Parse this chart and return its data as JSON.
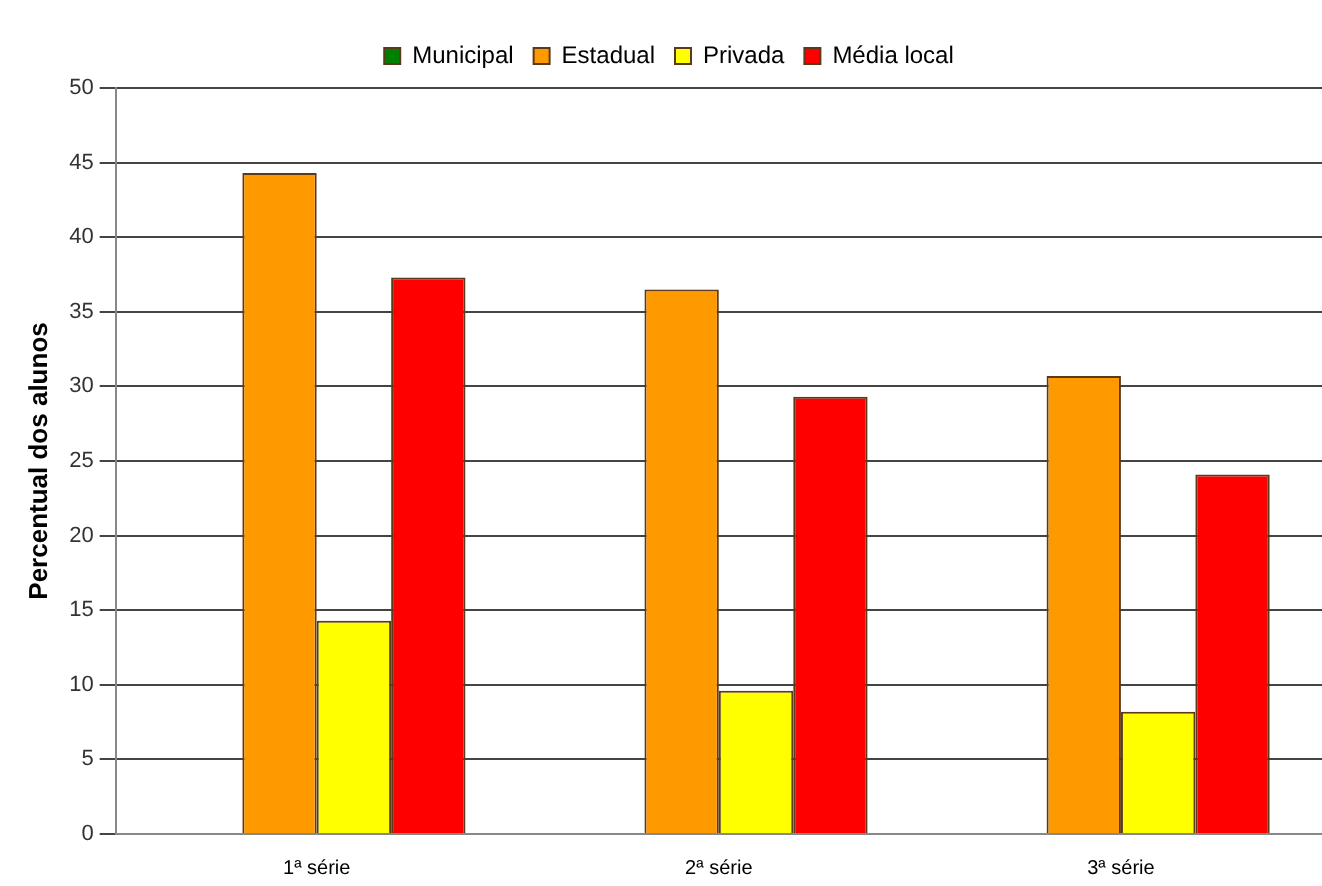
{
  "chart_data": {
    "type": "bar",
    "ylabel": "Percentual dos alunos",
    "categories": [
      "1ª série",
      "2ª série",
      "3ª série"
    ],
    "series": [
      {
        "name": "Municipal",
        "color": "#008000",
        "values": [
          null,
          null,
          null
        ]
      },
      {
        "name": "Estadual",
        "color": "#ff9900",
        "values": [
          44.3,
          36.5,
          30.7
        ]
      },
      {
        "name": "Privada",
        "color": "#ffff00",
        "values": [
          14.3,
          9.6,
          8.2
        ]
      },
      {
        "name": "Média local",
        "color": "#ff0000",
        "values": [
          37.3,
          29.3,
          24.1
        ]
      }
    ],
    "ylim": [
      0,
      50
    ],
    "yticks": [
      0,
      5,
      10,
      15,
      20,
      25,
      30,
      35,
      40,
      45,
      50
    ],
    "grid": "y",
    "legend": "top"
  }
}
